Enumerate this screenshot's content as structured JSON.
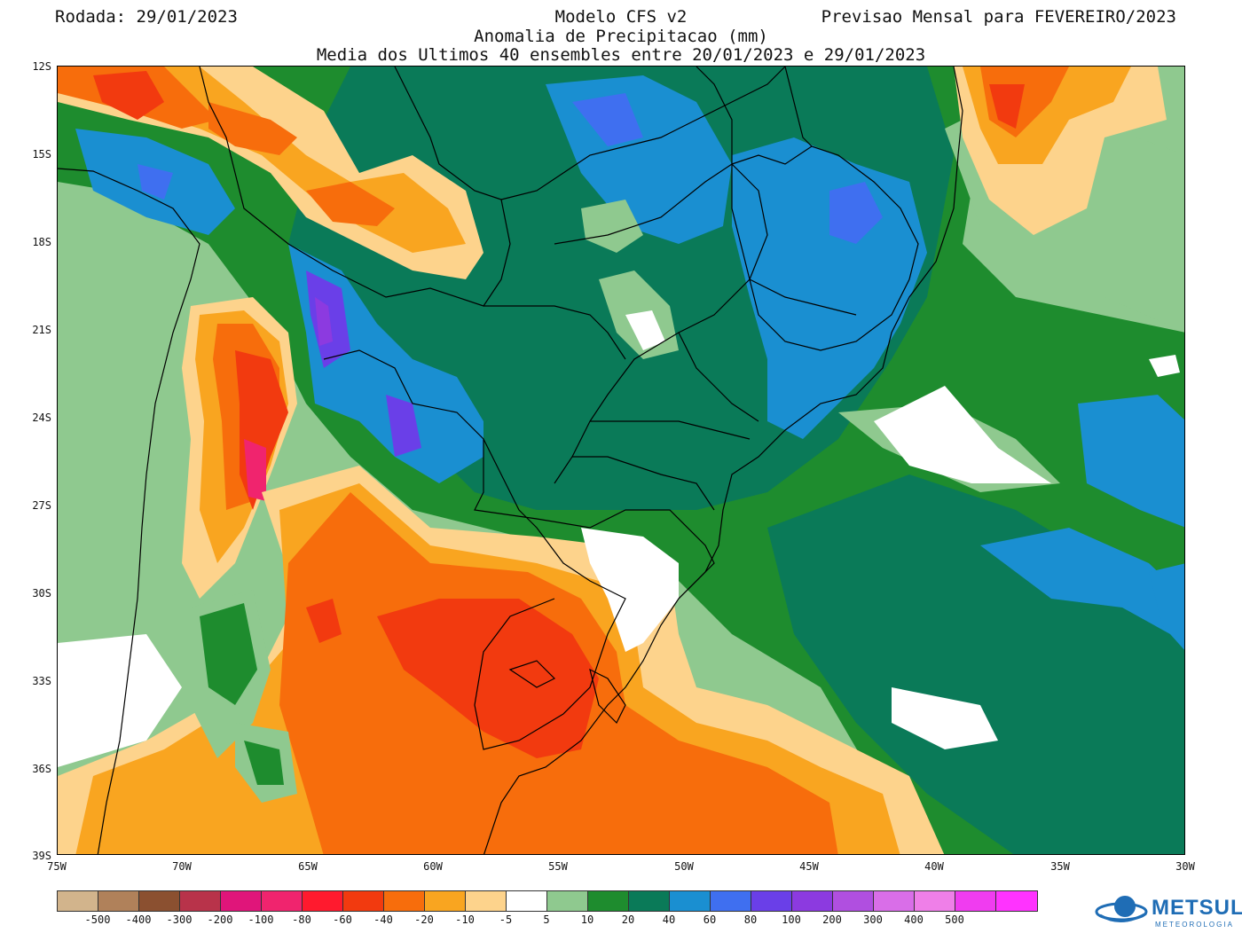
{
  "header": {
    "run_date": "Rodada: 29/01/2023",
    "forecast": "Previsao Mensal para FEVEREIRO/2023",
    "title_line1": "Modelo CFS v2",
    "title_line2": "Anomalia de Precipitacao (mm)",
    "title_line3": "Media dos Ultimos 40 ensembles entre 20/01/2023 e 29/01/2023"
  },
  "map": {
    "lat_labels": [
      "12S",
      "15S",
      "18S",
      "21S",
      "24S",
      "27S",
      "30S",
      "33S",
      "36S",
      "39S"
    ],
    "lon_labels": [
      "75W",
      "70W",
      "65W",
      "60W",
      "55W",
      "50W",
      "45W",
      "40W",
      "35W",
      "30W"
    ],
    "lat_range": [
      -39,
      -12
    ],
    "lon_range": [
      -75,
      -30
    ]
  },
  "legend": {
    "colors": [
      "#d2b48c",
      "#b0815a",
      "#8b5030",
      "#b8334a",
      "#e0157a",
      "#f0246e",
      "#ff1a2e",
      "#f23a0f",
      "#f76d0c",
      "#f9a520",
      "#fdd38c",
      "#ffffff",
      "#8fc98f",
      "#1e8c2e",
      "#0a7a58",
      "#1a8fd1",
      "#3f6ff0",
      "#6a3fe8",
      "#8c3ae0",
      "#b04fe0",
      "#d96ee8",
      "#ef7fe8",
      "#f03cf0",
      "#ff33ff"
    ],
    "labels": [
      "-500",
      "-400",
      "-300",
      "-200",
      "-100",
      "-80",
      "-60",
      "-40",
      "-20",
      "-10",
      "-5",
      "5",
      "10",
      "20",
      "40",
      "60",
      "80",
      "100",
      "200",
      "300",
      "400",
      "500"
    ]
  },
  "logo": {
    "name": "METSUL",
    "subtitle": "METEOROLOGIA"
  }
}
